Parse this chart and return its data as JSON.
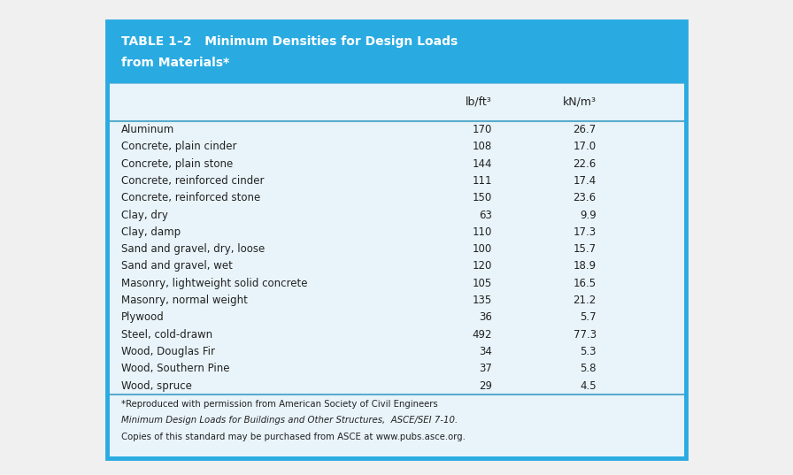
{
  "title_line1": "TABLE 1–2   Minimum Densities for Design Loads",
  "title_line2": "from Materials*",
  "title_bg_color": "#29ABE2",
  "title_text_color": "#FFFFFF",
  "header_col1": "lb/ft³",
  "header_col2": "kN/m³",
  "outer_bg_color": "#F0F0F0",
  "table_border_color": "#29ABE2",
  "body_bg_color": "#E8F4FA",
  "separator_color": "#5AABCC",
  "text_color": "#222222",
  "footer_text_color": "#222222",
  "rows": [
    [
      "Aluminum",
      "170",
      "26.7"
    ],
    [
      "Concrete, plain cinder",
      "108",
      "17.0"
    ],
    [
      "Concrete, plain stone",
      "144",
      "22.6"
    ],
    [
      "Concrete, reinforced cinder",
      "111",
      "17.4"
    ],
    [
      "Concrete, reinforced stone",
      "150",
      "23.6"
    ],
    [
      "Clay, dry",
      "63",
      "9.9"
    ],
    [
      "Clay, damp",
      "110",
      "17.3"
    ],
    [
      "Sand and gravel, dry, loose",
      "100",
      "15.7"
    ],
    [
      "Sand and gravel, wet",
      "120",
      "18.9"
    ],
    [
      "Masonry, lightweight solid concrete",
      "105",
      "16.5"
    ],
    [
      "Masonry, normal weight",
      "135",
      "21.2"
    ],
    [
      "Plywood",
      "36",
      "5.7"
    ],
    [
      "Steel, cold-drawn",
      "492",
      "77.3"
    ],
    [
      "Wood, Douglas Fir",
      "34",
      "5.3"
    ],
    [
      "Wood, Southern Pine",
      "37",
      "5.8"
    ],
    [
      "Wood, spruce",
      "29",
      "4.5"
    ]
  ],
  "footer_line1": "*Reproduced with permission from American Society of Civil Engineers",
  "footer_line2": "Minimum Design Loads for Buildings and Other Structures,  ASCE/SEI 7-10.",
  "footer_line3": "Copies of this standard may be purchased from ASCE at www.pubs.asce.org.",
  "fig_width": 8.96,
  "fig_height": 5.37,
  "dpi": 100
}
